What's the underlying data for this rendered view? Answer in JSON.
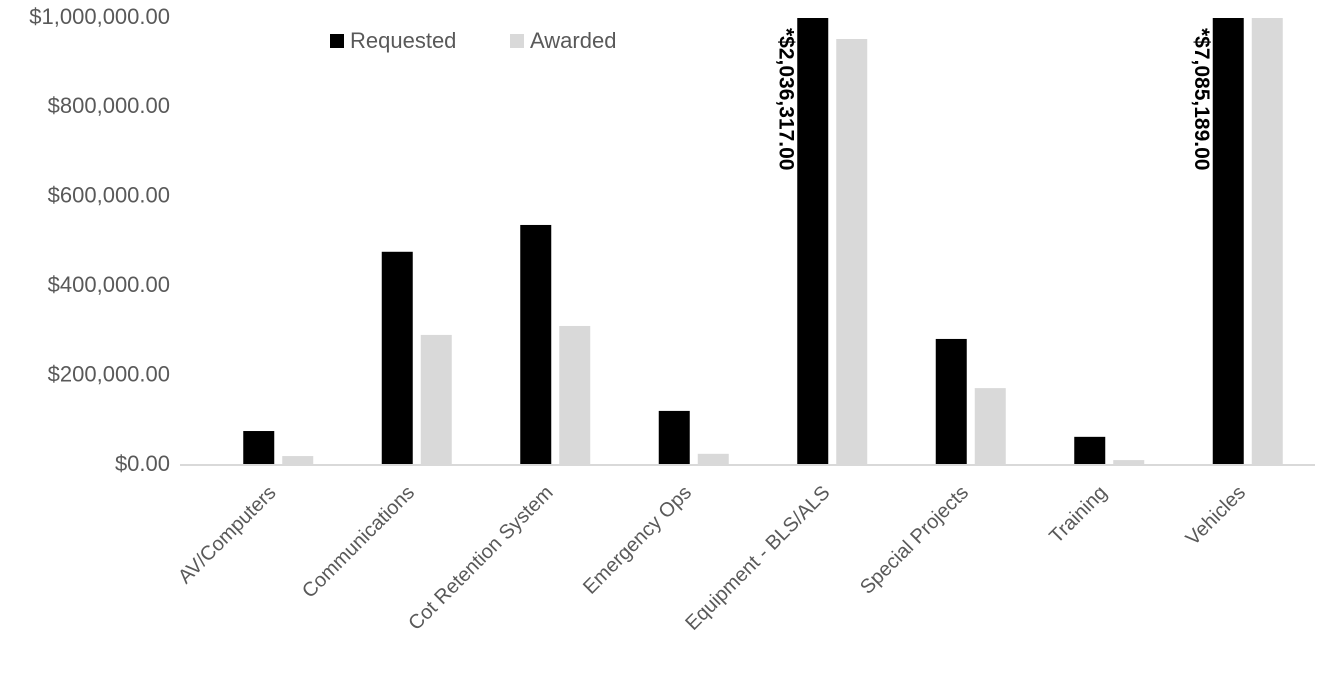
{
  "chart_data": {
    "type": "bar",
    "categories": [
      "AV/Computers",
      "Communications",
      "Cot Retention System",
      "Emergency Ops",
      "Equipment - BLS/ALS",
      "Special Projects",
      "Training",
      "Vehicles"
    ],
    "series": [
      {
        "name": "Requested",
        "color": "#000000",
        "values": [
          76000,
          477000,
          537000,
          121000,
          2036317,
          282000,
          63000,
          7085189
        ],
        "value_labels": [
          null,
          null,
          null,
          null,
          "*$2,036,317.00",
          null,
          null,
          "*$7,085,189.00"
        ]
      },
      {
        "name": "Awarded",
        "color": "#d9d9d9",
        "values": [
          20000,
          291000,
          311000,
          25000,
          953000,
          172000,
          11000,
          1000000
        ]
      }
    ],
    "ylim": [
      0,
      1000000
    ],
    "yticks": [
      {
        "value": 0,
        "label": "$0.00"
      },
      {
        "value": 200000,
        "label": "$200,000.00"
      },
      {
        "value": 400000,
        "label": "$400,000.00"
      },
      {
        "value": 600000,
        "label": "$600,000.00"
      },
      {
        "value": 800000,
        "label": "$800,000.00"
      },
      {
        "value": 1000000,
        "label": "$1,000,000.00"
      }
    ],
    "legend": "top"
  }
}
